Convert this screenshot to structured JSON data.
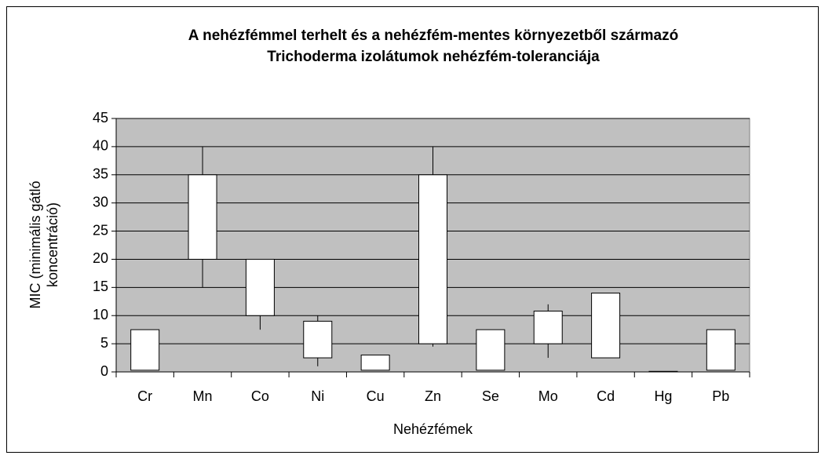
{
  "chart_data": {
    "type": "box",
    "title_lines": [
      "A nehézfémmel terhelt és a nehézfém-mentes környezetből származó",
      "Trichoderma izolátumok nehézfém-toleranciája"
    ],
    "ylabel_lines": [
      "MIC (minimális gátló",
      "koncentráció)"
    ],
    "xlabel": "Nehézfémek",
    "categories": [
      "Cr",
      "Mn",
      "Co",
      "Ni",
      "Cu",
      "Zn",
      "Se",
      "Mo",
      "Cd",
      "Hg",
      "Pb"
    ],
    "min": [
      0.3,
      15,
      7.5,
      1,
      0.3,
      4.5,
      0.3,
      2.5,
      2.5,
      0,
      0.3
    ],
    "box_bottom": [
      0.3,
      20,
      10,
      2.5,
      0.3,
      5,
      0.3,
      5,
      2.5,
      0,
      0.3
    ],
    "box_top": [
      7.5,
      35,
      20,
      9,
      3,
      35,
      7.5,
      10.8,
      14,
      0.1,
      7.5
    ],
    "max": [
      7.5,
      40,
      20,
      10,
      3,
      40,
      7.5,
      12,
      14,
      0.1,
      7.5
    ],
    "ylim": [
      0,
      45
    ],
    "yticks": [
      0,
      5,
      10,
      15,
      20,
      25,
      30,
      35,
      40,
      45
    ],
    "grid": true,
    "plot_color": "#c0c0c0",
    "box_color": "#ffffff"
  }
}
